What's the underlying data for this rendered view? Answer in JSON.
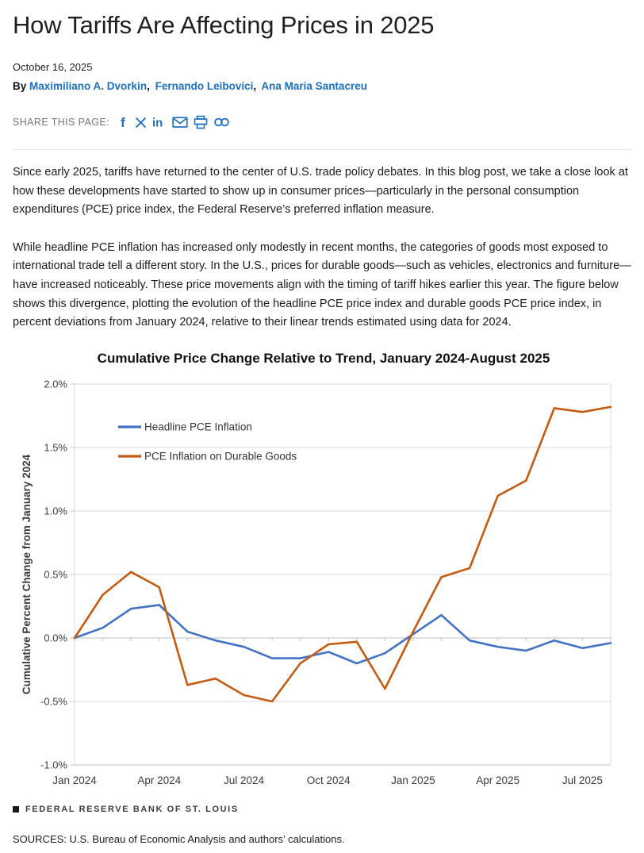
{
  "page": {
    "title": "How Tariffs Are Affecting Prices in 2025",
    "date": "October 16, 2025",
    "byline_prefix": "By",
    "author_separator": ",",
    "authors": [
      "Maximiliano A. Dvorkin",
      "Fernando Leibovici",
      "Ana Maria Santacreu"
    ],
    "share_label": "SHARE THIS PAGE:",
    "share_icons": [
      "facebook-icon",
      "x-icon",
      "linkedin-icon",
      "email-icon",
      "print-icon",
      "link-icon"
    ],
    "paragraphs": [
      "Since early 2025, tariffs have returned to the center of U.S. trade policy debates. In this blog post, we take a close look at how these developments have started to show up in consumer prices—particularly in the personal consumption expenditures (PCE) price index, the Federal Reserve’s preferred inflation measure.",
      "While headline PCE inflation has increased only modestly in recent months, the categories of goods most exposed to international trade tell a different story. In the U.S., prices for durable goods—such as vehicles, electronics and furniture—have increased noticeably. These price movements align with the timing of tariff hikes earlier this year. The figure below shows this divergence, plotting the evolution of the headline PCE price index and durable goods PCE price index, in percent deviations from January 2024, relative to their linear trends estimated using data for 2024."
    ],
    "footer_brand": "FEDERAL RESERVE BANK OF ST. LOUIS",
    "sources": "SOURCES: U.S. Bureau of Economic Analysis and authors’ calculations."
  },
  "colors": {
    "link_blue": "#1d70c0",
    "headline_line": "#4472C4",
    "durable_line": "#C55A11",
    "gridline": "#D9D9D9",
    "axis": "#BFBFBF",
    "tick_text": "#404040"
  },
  "chart_data": {
    "type": "line",
    "title": "Cumulative Price Change Relative to Trend, January 2024-August 2025",
    "xlabel": "",
    "ylabel": "Cumulative Percent Change from January 2024",
    "ylim": [
      -1.0,
      2.0
    ],
    "grid": true,
    "legend_position": "upper-left-inside",
    "x": [
      "Jan 2024",
      "Feb 2024",
      "Mar 2024",
      "Apr 2024",
      "May 2024",
      "Jun 2024",
      "Jul 2024",
      "Aug 2024",
      "Sep 2024",
      "Oct 2024",
      "Nov 2024",
      "Dec 2024",
      "Jan 2025",
      "Feb 2025",
      "Mar 2025",
      "Apr 2025",
      "May 2025",
      "Jun 2025",
      "Jul 2025",
      "Aug 2025"
    ],
    "x_tick_indices": [
      0,
      3,
      6,
      9,
      12,
      15,
      18
    ],
    "x_tick_labels": [
      "Jan 2024",
      "Apr 2024",
      "Jul 2024",
      "Oct 2024",
      "Jan 2025",
      "Apr 2025",
      "Jul 2025"
    ],
    "y_ticks": [
      2.0,
      1.5,
      1.0,
      0.5,
      0.0,
      -0.5,
      -1.0
    ],
    "y_tick_labels": [
      "2.0%",
      "1.5%",
      "1.0%",
      "0.5%",
      "0.0%",
      "-0.5%",
      "-1.0%"
    ],
    "series": [
      {
        "name": "Headline PCE Inflation",
        "color": "#4472C4",
        "values": [
          0.0,
          0.08,
          0.23,
          0.26,
          0.05,
          -0.02,
          -0.07,
          -0.16,
          -0.16,
          -0.11,
          -0.2,
          -0.12,
          0.03,
          0.18,
          -0.02,
          -0.07,
          -0.1,
          -0.02,
          -0.08,
          -0.04
        ]
      },
      {
        "name": "PCE Inflation on Durable Goods",
        "color": "#C55A11",
        "values": [
          0.0,
          0.34,
          0.52,
          0.4,
          -0.37,
          -0.32,
          -0.45,
          -0.5,
          -0.2,
          -0.05,
          -0.03,
          -0.4,
          0.05,
          0.48,
          0.55,
          1.12,
          1.24,
          1.81,
          1.78,
          1.82
        ]
      }
    ]
  }
}
